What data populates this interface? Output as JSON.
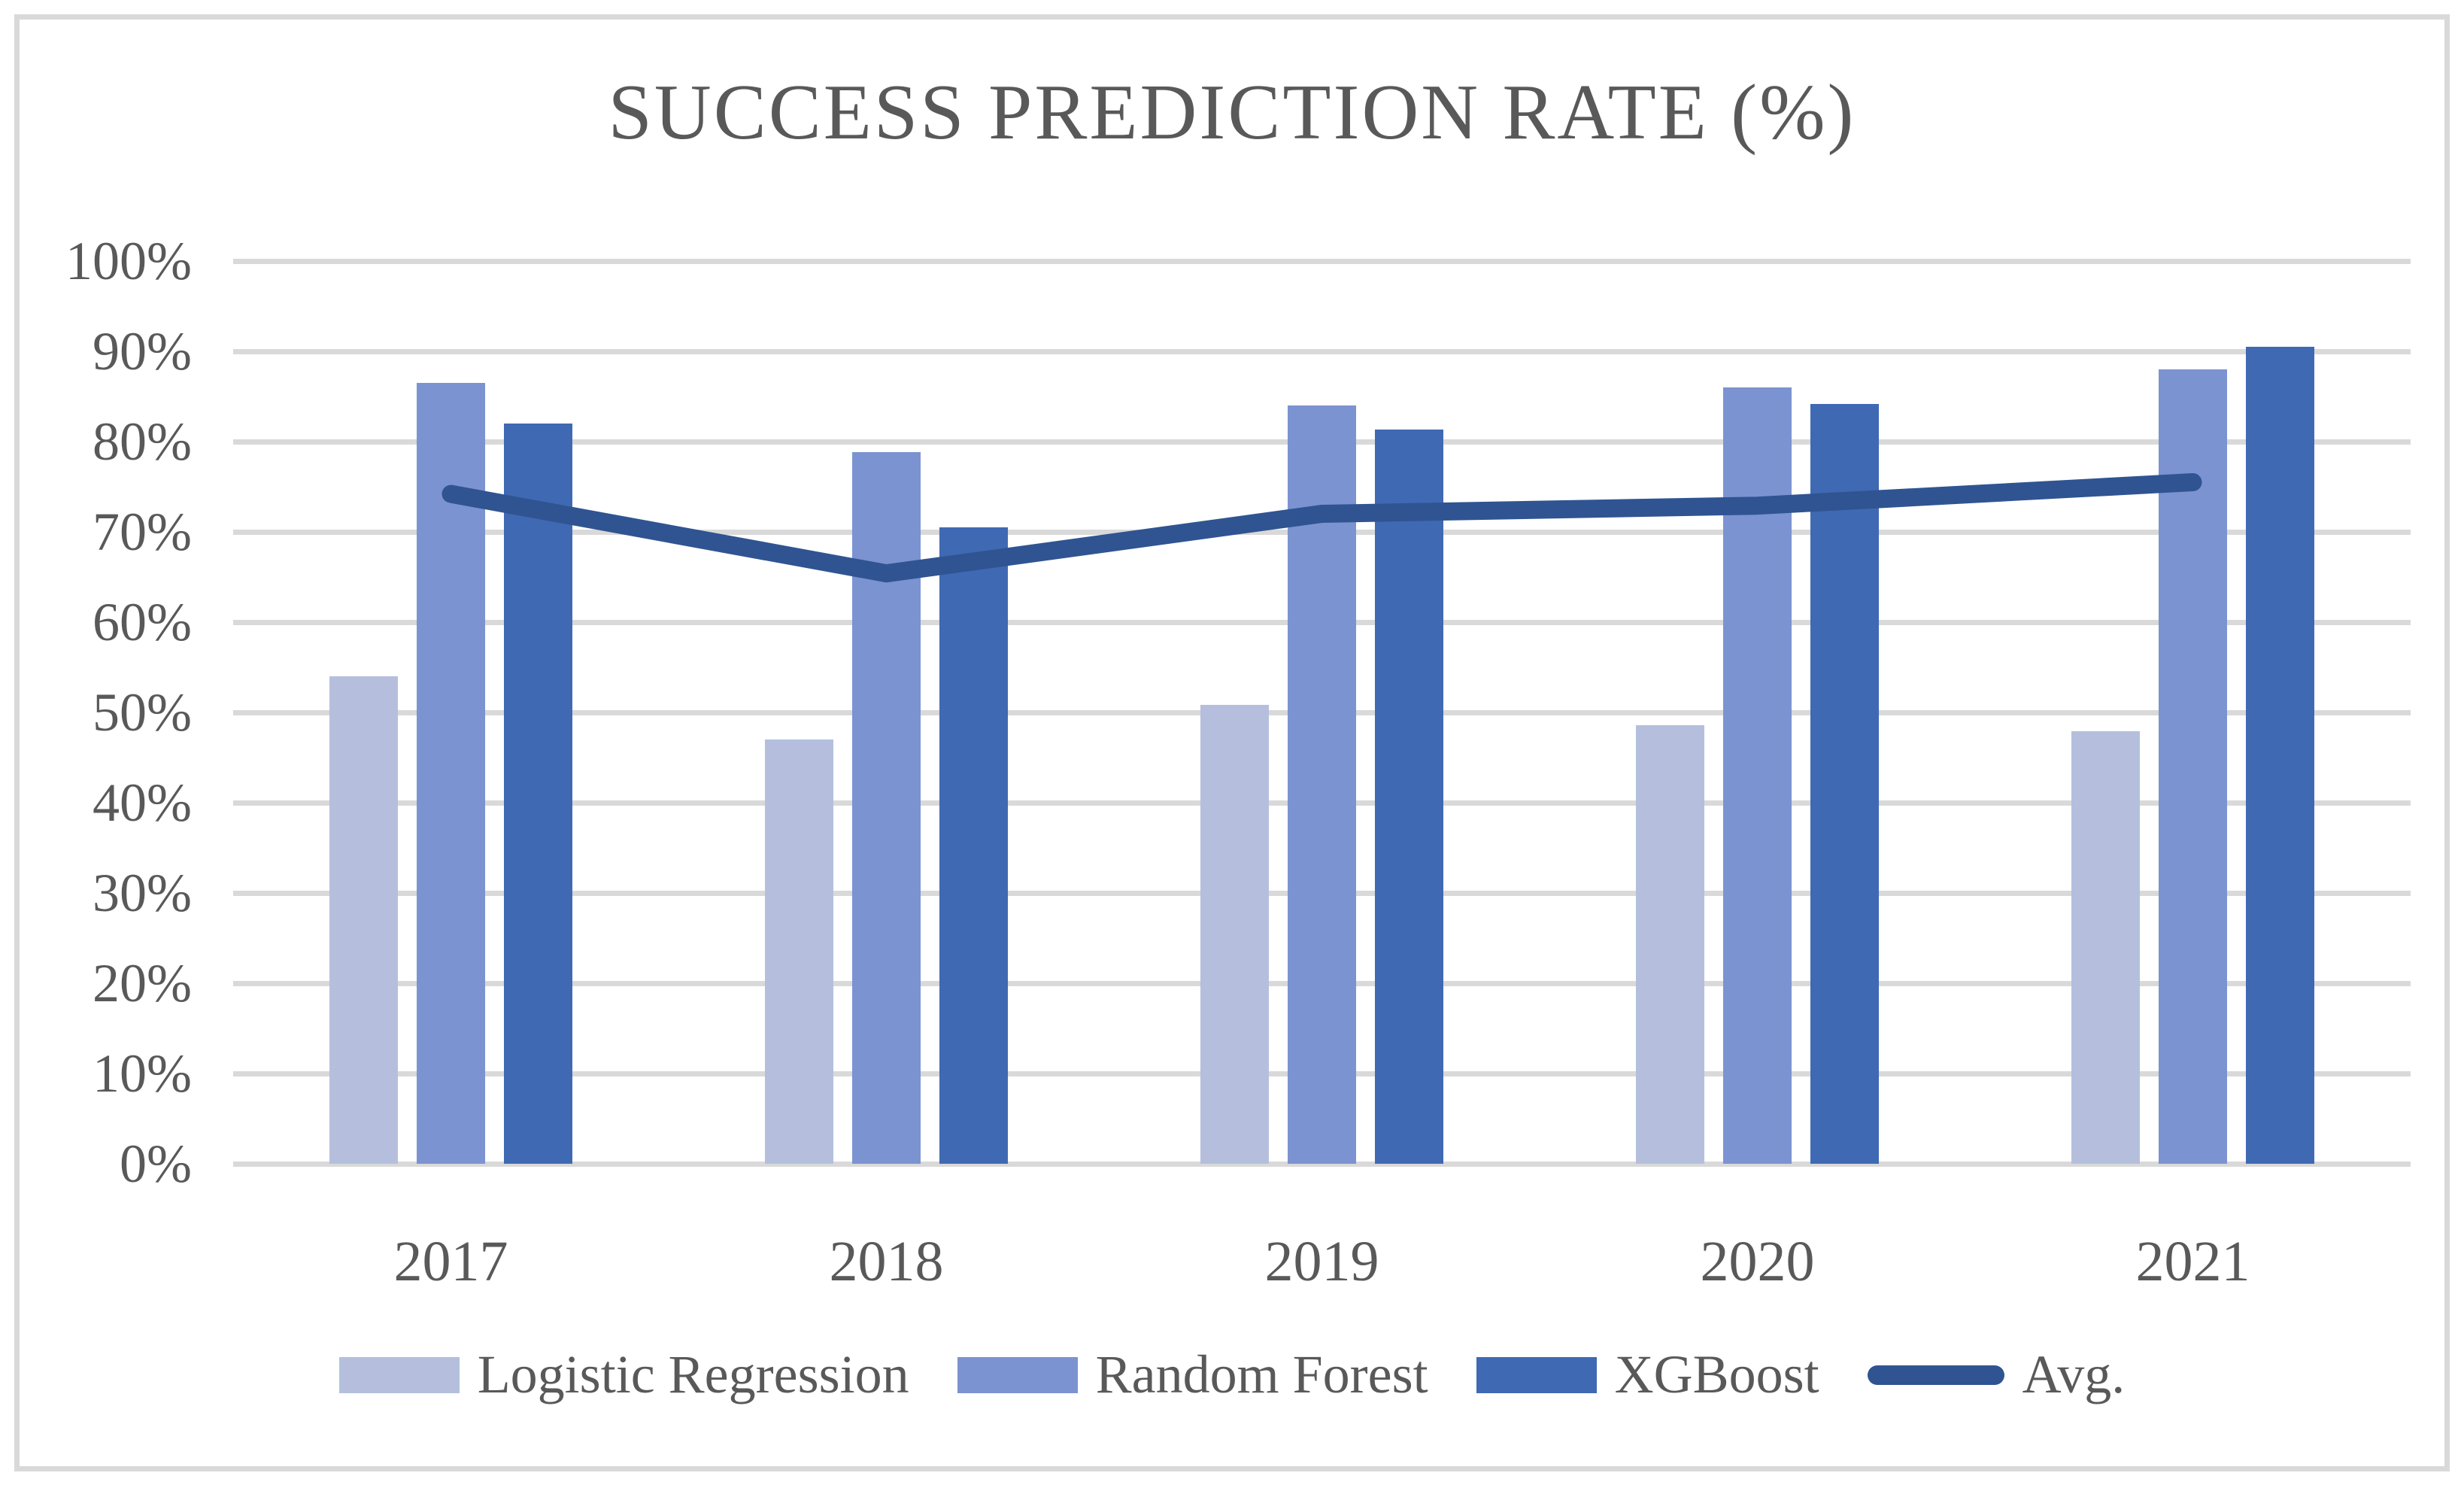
{
  "title": "SUCCESS PREDICTION RATE (%)",
  "colors": {
    "logistic_regression_bar": "#B5BFDD",
    "random_forest_bar": "#7C93D1",
    "xgboost_bar": "#3F69B3",
    "avg_line": "#2F5491",
    "gridline": "#D9D9D9",
    "frame_border": "#D9D9D9",
    "text": "#595959",
    "background": "#FFFFFF"
  },
  "chart_data": {
    "type": "bar",
    "title": "SUCCESS PREDICTION RATE (%)",
    "categories": [
      "2017",
      "2018",
      "2019",
      "2020",
      "2021"
    ],
    "series": [
      {
        "name": "Logistic Regression",
        "type": "bar",
        "color": "#B5BFDD",
        "values": [
          54.0,
          47.0,
          50.8,
          48.6,
          47.9
        ]
      },
      {
        "name": "Random Forest",
        "type": "bar",
        "color": "#7C93D1",
        "values": [
          86.5,
          78.8,
          84.0,
          86.0,
          88.0
        ]
      },
      {
        "name": "XGBoost",
        "type": "bar",
        "color": "#3F69B3",
        "values": [
          82.0,
          70.5,
          81.3,
          84.2,
          90.5
        ]
      },
      {
        "name": "Avg.",
        "type": "line",
        "color": "#2F5491",
        "values": [
          74.2,
          65.4,
          72.0,
          72.9,
          75.5
        ]
      }
    ],
    "xlabel": "",
    "ylabel": "",
    "ylim": [
      0,
      100
    ],
    "y_tick_step": 10,
    "y_ticks": [
      "0%",
      "10%",
      "20%",
      "30%",
      "40%",
      "50%",
      "60%",
      "70%",
      "80%",
      "90%",
      "100%"
    ],
    "grid": true,
    "legend_position": "bottom"
  }
}
